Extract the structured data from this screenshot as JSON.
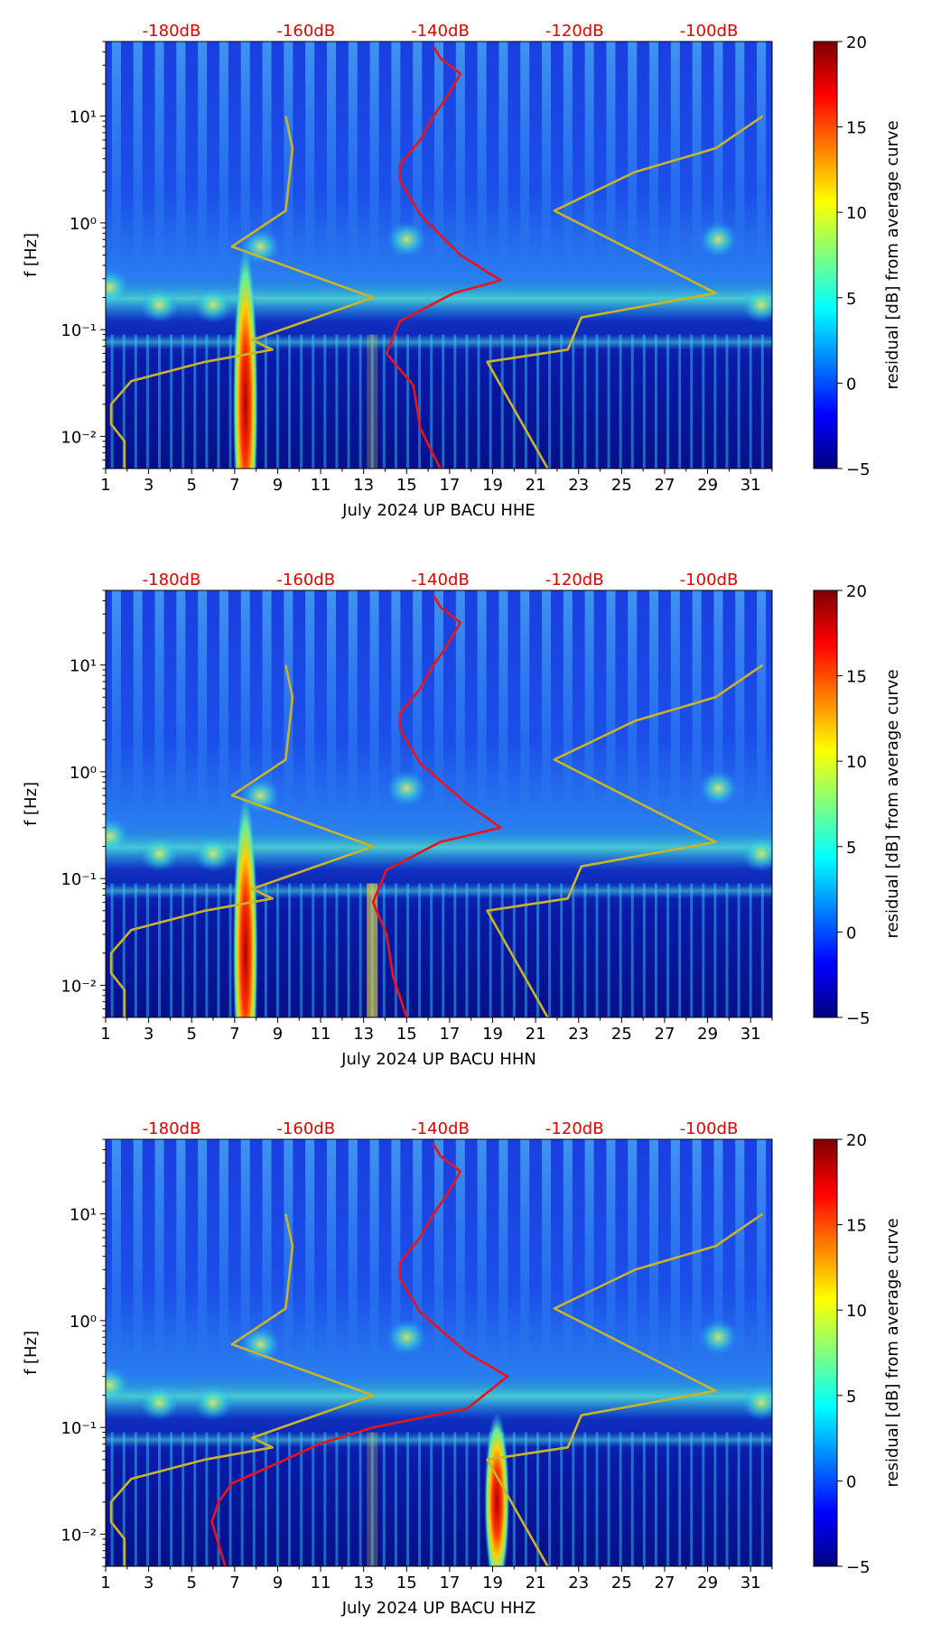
{
  "chart_data": [
    {
      "type": "heatmap",
      "title": "",
      "xlabel": "July 2024 UP BACU  HHE",
      "ylabel": "f [Hz]",
      "x_ticks": [
        "1",
        "3",
        "5",
        "7",
        "9",
        "11",
        "13",
        "15",
        "17",
        "19",
        "21",
        "23",
        "25",
        "27",
        "29",
        "31"
      ],
      "xlim": [
        1,
        32
      ],
      "y_ticks": [
        "10⁻²",
        "10⁻¹",
        "10⁰",
        "10¹"
      ],
      "ylim_hz": [
        0.005,
        50
      ],
      "y_scale": "log",
      "top_axis_labels": [
        "-180dB",
        "-160dB",
        "-140dB",
        "-120dB",
        "-100dB"
      ],
      "top_axis_db": [
        -180,
        -160,
        -140,
        -120,
        -100
      ],
      "colorbar": {
        "label": "residual [dB] from average curve",
        "ticks": [
          "20",
          "15",
          "10",
          "5",
          "0",
          "−5"
        ],
        "range": [
          -5,
          20
        ],
        "cmap": "jet"
      },
      "series": [
        {
          "name": "reference-noise-curve",
          "color": "#c8b428",
          "values": [
            [
              -187,
              0.005
            ],
            [
              -187,
              0.009
            ],
            [
              -189,
              0.013
            ],
            [
              -189,
              0.02
            ],
            [
              -186,
              0.033
            ],
            [
              -175,
              0.05
            ],
            [
              -165,
              0.065
            ],
            [
              -168,
              0.08
            ],
            [
              -150,
              0.2
            ],
            [
              -171,
              0.6
            ],
            [
              -163,
              1.3
            ],
            [
              -162,
              5
            ],
            [
              -163,
              10
            ]
          ]
        },
        {
          "name": "reference-noise-curve-2",
          "color": "#c8b428",
          "values": [
            [
              -124,
              0.005
            ],
            [
              -133,
              0.05
            ],
            [
              -121,
              0.065
            ],
            [
              -119,
              0.13
            ],
            [
              -99,
              0.22
            ],
            [
              -123,
              1.3
            ],
            [
              -111,
              3
            ],
            [
              -99,
              5
            ],
            [
              -92,
              10
            ]
          ]
        },
        {
          "name": "station-mean-psd",
          "color": "#e8141c",
          "values": [
            [
              -140,
              0.005
            ],
            [
              -143,
              0.012
            ],
            [
              -144,
              0.03
            ],
            [
              -148,
              0.06
            ],
            [
              -146,
              0.12
            ],
            [
              -138,
              0.22
            ],
            [
              -131,
              0.29
            ],
            [
              -137,
              0.5
            ],
            [
              -143,
              1.2
            ],
            [
              -146,
              2.5
            ],
            [
              -146,
              3.5
            ],
            [
              -143,
              6
            ],
            [
              -141,
              10
            ],
            [
              -139,
              15
            ],
            [
              -137,
              25
            ],
            [
              -140,
              35
            ],
            [
              -141,
              45
            ]
          ]
        }
      ]
    },
    {
      "type": "heatmap",
      "title": "",
      "xlabel": "July 2024 UP BACU  HHN",
      "ylabel": "f [Hz]",
      "x_ticks": [
        "1",
        "3",
        "5",
        "7",
        "9",
        "11",
        "13",
        "15",
        "17",
        "19",
        "21",
        "23",
        "25",
        "27",
        "29",
        "31"
      ],
      "xlim": [
        1,
        32
      ],
      "y_ticks": [
        "10⁻²",
        "10⁻¹",
        "10⁰",
        "10¹"
      ],
      "ylim_hz": [
        0.005,
        50
      ],
      "y_scale": "log",
      "top_axis_labels": [
        "-180dB",
        "-160dB",
        "-140dB",
        "-120dB",
        "-100dB"
      ],
      "top_axis_db": [
        -180,
        -160,
        -140,
        -120,
        -100
      ],
      "colorbar": {
        "label": "residual [dB] from average curve",
        "ticks": [
          "20",
          "15",
          "10",
          "5",
          "0",
          "−5"
        ],
        "range": [
          -5,
          20
        ],
        "cmap": "jet"
      },
      "series": [
        {
          "name": "reference-noise-curve",
          "color": "#c8b428",
          "values": [
            [
              -187,
              0.005
            ],
            [
              -187,
              0.009
            ],
            [
              -189,
              0.013
            ],
            [
              -189,
              0.02
            ],
            [
              -186,
              0.033
            ],
            [
              -175,
              0.05
            ],
            [
              -165,
              0.065
            ],
            [
              -168,
              0.08
            ],
            [
              -150,
              0.2
            ],
            [
              -171,
              0.6
            ],
            [
              -163,
              1.3
            ],
            [
              -162,
              5
            ],
            [
              -163,
              10
            ]
          ]
        },
        {
          "name": "reference-noise-curve-2",
          "color": "#c8b428",
          "values": [
            [
              -124,
              0.005
            ],
            [
              -133,
              0.05
            ],
            [
              -121,
              0.065
            ],
            [
              -119,
              0.13
            ],
            [
              -99,
              0.22
            ],
            [
              -123,
              1.3
            ],
            [
              -111,
              3
            ],
            [
              -99,
              5
            ],
            [
              -92,
              10
            ]
          ]
        },
        {
          "name": "station-mean-psd",
          "color": "#e8141c",
          "values": [
            [
              -145,
              0.005
            ],
            [
              -147,
              0.012
            ],
            [
              -148,
              0.03
            ],
            [
              -150,
              0.06
            ],
            [
              -148,
              0.12
            ],
            [
              -140,
              0.22
            ],
            [
              -131,
              0.3
            ],
            [
              -136,
              0.5
            ],
            [
              -143,
              1.2
            ],
            [
              -146,
              2.5
            ],
            [
              -146,
              3.5
            ],
            [
              -143,
              6
            ],
            [
              -141,
              10
            ],
            [
              -139,
              15
            ],
            [
              -137,
              25
            ],
            [
              -140,
              35
            ],
            [
              -141,
              45
            ]
          ]
        }
      ]
    },
    {
      "type": "heatmap",
      "title": "",
      "xlabel": "July 2024 UP BACU  HHZ",
      "ylabel": "f [Hz]",
      "x_ticks": [
        "1",
        "3",
        "5",
        "7",
        "9",
        "11",
        "13",
        "15",
        "17",
        "19",
        "21",
        "23",
        "25",
        "27",
        "29",
        "31"
      ],
      "xlim": [
        1,
        32
      ],
      "y_ticks": [
        "10⁻²",
        "10⁻¹",
        "10⁰",
        "10¹"
      ],
      "ylim_hz": [
        0.005,
        50
      ],
      "y_scale": "log",
      "top_axis_labels": [
        "-180dB",
        "-160dB",
        "-140dB",
        "-120dB",
        "-100dB"
      ],
      "top_axis_db": [
        -180,
        -160,
        -140,
        -120,
        -100
      ],
      "colorbar": {
        "label": "residual [dB] from average curve",
        "ticks": [
          "20",
          "15",
          "10",
          "5",
          "0",
          "−5"
        ],
        "range": [
          -5,
          20
        ],
        "cmap": "jet"
      },
      "series": [
        {
          "name": "reference-noise-curve",
          "color": "#c8b428",
          "values": [
            [
              -187,
              0.005
            ],
            [
              -187,
              0.009
            ],
            [
              -189,
              0.013
            ],
            [
              -189,
              0.02
            ],
            [
              -186,
              0.033
            ],
            [
              -175,
              0.05
            ],
            [
              -165,
              0.065
            ],
            [
              -168,
              0.08
            ],
            [
              -150,
              0.2
            ],
            [
              -171,
              0.6
            ],
            [
              -163,
              1.3
            ],
            [
              -162,
              5
            ],
            [
              -163,
              10
            ]
          ]
        },
        {
          "name": "reference-noise-curve-2",
          "color": "#c8b428",
          "values": [
            [
              -124,
              0.005
            ],
            [
              -133,
              0.05
            ],
            [
              -121,
              0.065
            ],
            [
              -119,
              0.13
            ],
            [
              -99,
              0.22
            ],
            [
              -123,
              1.3
            ],
            [
              -111,
              3
            ],
            [
              -99,
              5
            ],
            [
              -92,
              10
            ]
          ]
        },
        {
          "name": "station-mean-psd",
          "color": "#e8141c",
          "values": [
            [
              -172,
              0.005
            ],
            [
              -173,
              0.008
            ],
            [
              -174,
              0.013
            ],
            [
              -173,
              0.02
            ],
            [
              -171,
              0.03
            ],
            [
              -163,
              0.05
            ],
            [
              -158,
              0.07
            ],
            [
              -150,
              0.1
            ],
            [
              -136,
              0.15
            ],
            [
              -130,
              0.3
            ],
            [
              -136,
              0.5
            ],
            [
              -143,
              1.2
            ],
            [
              -146,
              2.5
            ],
            [
              -146,
              3.5
            ],
            [
              -143,
              6
            ],
            [
              -141,
              10
            ],
            [
              -139,
              15
            ],
            [
              -137,
              25
            ],
            [
              -140,
              35
            ],
            [
              -141,
              45
            ]
          ]
        }
      ]
    }
  ]
}
